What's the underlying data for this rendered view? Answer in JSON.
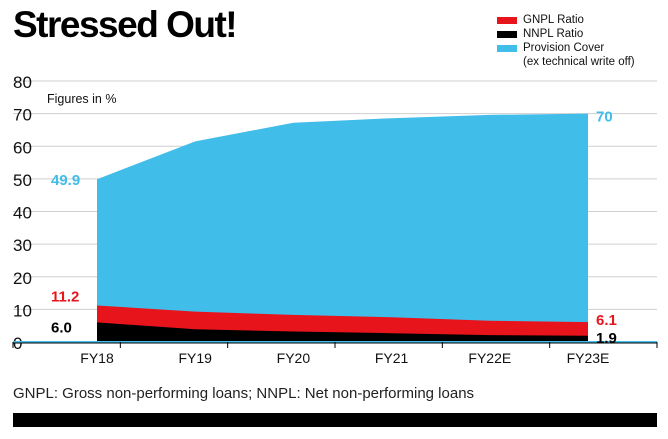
{
  "title": "Stressed Out!",
  "note": "Figures in %",
  "footnote": "GNPL: Gross non-performing loans; NNPL: Net non-performing loans",
  "legend": [
    {
      "label": "GNPL Ratio",
      "color": "#e8141c"
    },
    {
      "label": "NNPL Ratio",
      "color": "#000000"
    },
    {
      "label": "Provision Cover",
      "sublabel": "(ex technical write off)",
      "color": "#41bdea"
    }
  ],
  "chart_data": {
    "type": "area",
    "categories": [
      "FY18",
      "FY19",
      "FY20",
      "FY21",
      "FY22E",
      "FY23E"
    ],
    "ylim": [
      0,
      80
    ],
    "yticks": [
      0,
      10,
      20,
      30,
      40,
      50,
      60,
      70,
      80
    ],
    "series": [
      {
        "name": "Provision Cover",
        "color": "#41bdea",
        "values": [
          49.9,
          61.5,
          67.2,
          68.6,
          69.6,
          70
        ]
      },
      {
        "name": "GNPL Ratio",
        "color": "#e8141c",
        "values": [
          11.2,
          9.3,
          8.3,
          7.6,
          6.5,
          6.1
        ]
      },
      {
        "name": "NNPL Ratio",
        "color": "#000000",
        "values": [
          6.0,
          3.9,
          3.2,
          2.7,
          2.1,
          1.9
        ]
      }
    ],
    "data_labels": {
      "start": [
        {
          "text": "49.9",
          "color": "#41bdea",
          "value": 49.9
        },
        {
          "text": "11.2",
          "color": "#e8141c",
          "value": 11.2
        },
        {
          "text": "6.0",
          "color": "#000000",
          "value": 6.0
        }
      ],
      "end": [
        {
          "text": "70",
          "color": "#41bdea",
          "value": 70
        },
        {
          "text": "6.1",
          "color": "#e8141c",
          "value": 6.1
        },
        {
          "text": "1.9",
          "color": "#000000",
          "value": 1.9
        }
      ]
    }
  }
}
